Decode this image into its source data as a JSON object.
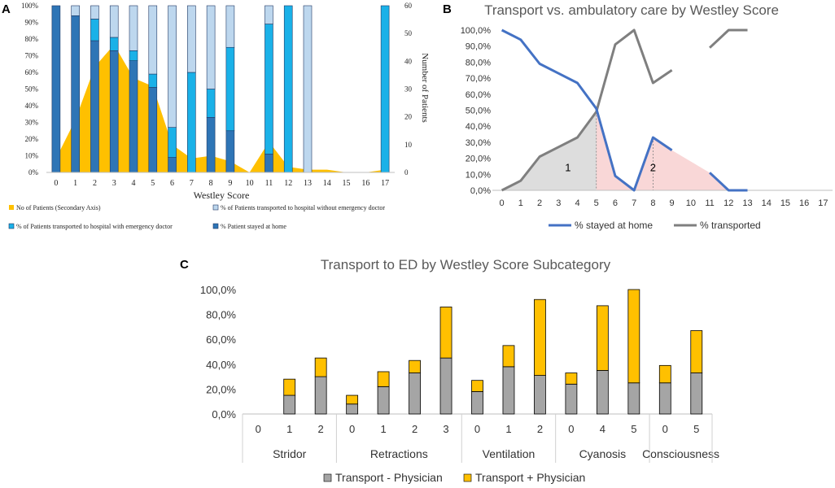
{
  "chart_data": [
    {
      "panel_label": "A",
      "type": "bar",
      "stacked": true,
      "categories": [
        "0",
        "1",
        "2",
        "3",
        "4",
        "5",
        "6",
        "7",
        "8",
        "9",
        "10",
        "11",
        "12",
        "13",
        "14",
        "15",
        "16",
        "17"
      ],
      "xlabel": "Westley Score",
      "ylabel_right": "Number of Patients",
      "ylim": [
        0,
        1
      ],
      "ylim_right": [
        0,
        60
      ],
      "y_ticks": [
        "0%",
        "10%",
        "20%",
        "30%",
        "40%",
        "50%",
        "60%",
        "70%",
        "80%",
        "90%",
        "100%"
      ],
      "y_ticks_right": [
        "0",
        "10",
        "20",
        "30",
        "40",
        "50",
        "60"
      ],
      "colors": {
        "home": "#2e75b6",
        "emergency": "#1ab1e8",
        "without": "#bdd7ee",
        "patients": "#ffc000"
      },
      "series": [
        {
          "key": "home",
          "name": "% Patient stayed at home",
          "values": [
            1.0,
            0.94,
            0.79,
            0.73,
            0.67,
            0.51,
            0.09,
            0,
            0.33,
            0.25,
            null,
            0.11,
            0,
            0,
            null,
            null,
            null,
            0
          ]
        },
        {
          "key": "emergency",
          "name": "% of Patients transported to hospital with emergency doctor",
          "values": [
            0,
            0,
            0.13,
            0.08,
            0.06,
            0.08,
            0.18,
            0.6,
            0.17,
            0.5,
            null,
            0.78,
            1.0,
            0,
            null,
            null,
            null,
            1.0
          ]
        },
        {
          "key": "without",
          "name": "% of Patients transported to hospital without emergency doctor",
          "values": [
            0,
            0.06,
            0.08,
            0.19,
            0.27,
            0.41,
            0.73,
            0.4,
            0.5,
            0.25,
            null,
            0.11,
            0,
            1.0,
            null,
            null,
            null,
            0
          ]
        },
        {
          "key": "patients",
          "name": "No of Patients (Secondary Axis)",
          "values": [
            5,
            19,
            38,
            46,
            34,
            31,
            10,
            5,
            6,
            4,
            0,
            11,
            2,
            1,
            1,
            0,
            0,
            1
          ]
        }
      ],
      "legend": {
        "patients": "No of Patients (Secondary Axis)",
        "without": "% of Patients transported to hospital without emergency doctor",
        "emergency": "% of Patients transported to hospital with emergency doctor",
        "home": "% Patient stayed at home"
      }
    },
    {
      "panel_label": "B",
      "type": "line",
      "title": "Transport vs. ambulatory care by Westley Score",
      "categories": [
        "0",
        "1",
        "2",
        "3",
        "4",
        "5",
        "6",
        "7",
        "8",
        "9",
        "10",
        "11",
        "12",
        "13",
        "14",
        "15",
        "16",
        "17"
      ],
      "ylim": [
        0,
        1
      ],
      "y_ticks": [
        "0,0%",
        "10,0%",
        "20,0%",
        "30,0%",
        "40,0%",
        "50,0%",
        "60,0%",
        "70,0%",
        "80,0%",
        "90,0%",
        "100,0%"
      ],
      "series": [
        {
          "name": "% stayed at home",
          "color": "#4472c4",
          "values": [
            1.0,
            0.94,
            0.79,
            0.73,
            0.67,
            0.51,
            0.09,
            0,
            0.33,
            0.25,
            null,
            0.11,
            0,
            0,
            null,
            null,
            null,
            null
          ]
        },
        {
          "name": "% transported",
          "color": "#7f7f7f",
          "values": [
            0,
            0.06,
            0.21,
            0.27,
            0.33,
            0.49,
            0.91,
            1.0,
            0.67,
            0.75,
            null,
            0.89,
            1.0,
            1.0,
            null,
            null,
            null,
            null
          ]
        }
      ],
      "annotations": [
        {
          "text": "1",
          "x": 3.5,
          "y": 0.14
        },
        {
          "text": "2",
          "x": 8.0,
          "y": 0.14
        }
      ]
    },
    {
      "panel_label": "C",
      "type": "bar",
      "stacked": true,
      "title": "Transport to ED by Westley Score Subcategory",
      "groups": [
        {
          "name": "Stridor",
          "categories": [
            "0",
            "1",
            "2"
          ]
        },
        {
          "name": "Retractions",
          "categories": [
            "0",
            "1",
            "2",
            "3"
          ]
        },
        {
          "name": "Ventilation",
          "categories": [
            "0",
            "1",
            "2"
          ]
        },
        {
          "name": "Cyanosis",
          "categories": [
            "0",
            "4",
            "5"
          ]
        },
        {
          "name": "Consciousness",
          "categories": [
            "0",
            "5"
          ]
        }
      ],
      "ylim": [
        0,
        1
      ],
      "y_ticks": [
        "0,0%",
        "20,0%",
        "40,0%",
        "60,0%",
        "80,0%",
        "100,0%"
      ],
      "series": [
        {
          "name": "Transport - Physician",
          "color": "#a5a5a5",
          "values": [
            0,
            0.15,
            0.3,
            0.08,
            0.22,
            0.33,
            0.45,
            0.18,
            0.38,
            0.31,
            0.24,
            0.35,
            0.25,
            0.25,
            0.33
          ]
        },
        {
          "name": "Transport + Physician",
          "color": "#ffc000",
          "values": [
            0,
            0.13,
            0.15,
            0.07,
            0.12,
            0.1,
            0.41,
            0.09,
            0.17,
            0.61,
            0.09,
            0.52,
            0.75,
            0.14,
            0.34
          ]
        }
      ]
    }
  ]
}
